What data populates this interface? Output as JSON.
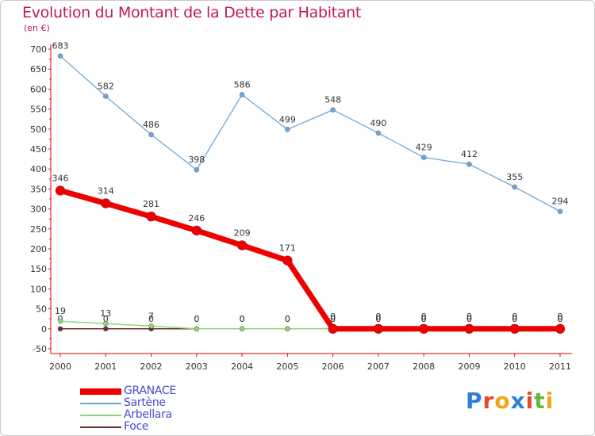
{
  "header": {
    "title": "Evolution du Montant de la Dette par Habitant",
    "subtitle": "(en €)"
  },
  "colors": {
    "title": "#c2185b",
    "axis": "#e00000",
    "grid": "#dddddd",
    "legend_text": "#4a4ad0"
  },
  "logo": {
    "text": "Proxiti",
    "letters": [
      {
        "ch": "P",
        "color": "#2e7fd6"
      },
      {
        "ch": "r",
        "color": "#e8492c"
      },
      {
        "ch": "o",
        "color": "#f3a51a"
      },
      {
        "ch": "x",
        "color": "#2e7fd6"
      },
      {
        "ch": "i",
        "color": "#e8492c"
      },
      {
        "ch": "t",
        "color": "#6cb33f"
      },
      {
        "ch": "i",
        "color": "#f3a51a"
      }
    ]
  },
  "chart_data": {
    "type": "line",
    "title": "Evolution du Montant de la Dette par Habitant",
    "subtitle": "(en €)",
    "xlabel": "",
    "ylabel": "",
    "x": [
      "2000",
      "2001",
      "2002",
      "2003",
      "2004",
      "2005",
      "2006",
      "2007",
      "2008",
      "2009",
      "2010",
      "2011"
    ],
    "ylim": [
      -50,
      700
    ],
    "yticks": [
      "-50",
      "0",
      "50",
      "100",
      "150",
      "200",
      "250",
      "300",
      "350",
      "400",
      "450",
      "500",
      "550",
      "600",
      "650",
      "700"
    ],
    "grid": false,
    "legend_position": "bottom-left",
    "series": [
      {
        "name": "Foce",
        "color": "#6e2c2c",
        "width": 1.5,
        "marker_radius": 3,
        "values": [
          0,
          0,
          0,
          0,
          0,
          0,
          0,
          0,
          0,
          0,
          0,
          0
        ],
        "labels": [
          "0",
          "0",
          "0",
          "0",
          "0",
          "0",
          "0",
          "0",
          "0",
          "0",
          "0",
          "0"
        ]
      },
      {
        "name": "Arbellara",
        "color": "#8fd87a",
        "width": 1.5,
        "marker_radius": 3,
        "values": [
          19,
          13,
          7,
          0,
          0,
          0,
          0,
          0,
          0,
          0,
          0,
          0
        ],
        "labels": [
          "19",
          "13",
          "7",
          "0",
          "0",
          "0",
          "0",
          "0",
          "0",
          "0",
          "0",
          "0"
        ]
      },
      {
        "name": "Sartène",
        "color": "#6ea6d8",
        "width": 1.3,
        "marker_radius": 3,
        "values": [
          683,
          582,
          486,
          398,
          586,
          499,
          548,
          490,
          429,
          412,
          355,
          294
        ],
        "labels": [
          "683",
          "582",
          "486",
          "398",
          "586",
          "499",
          "548",
          "490",
          "429",
          "412",
          "355",
          "294"
        ]
      },
      {
        "name": "GRANACE",
        "color": "#ee0000",
        "width": 7,
        "marker_radius": 6,
        "values": [
          346,
          314,
          281,
          246,
          209,
          171,
          0,
          0,
          0,
          0,
          0,
          0
        ],
        "labels": [
          "346",
          "314",
          "281",
          "246",
          "209",
          "171",
          "0",
          "0",
          "0",
          "0",
          "0",
          "0"
        ]
      }
    ],
    "legend": [
      "GRANACE",
      "Sartène",
      "Arbellara",
      "Foce"
    ]
  }
}
